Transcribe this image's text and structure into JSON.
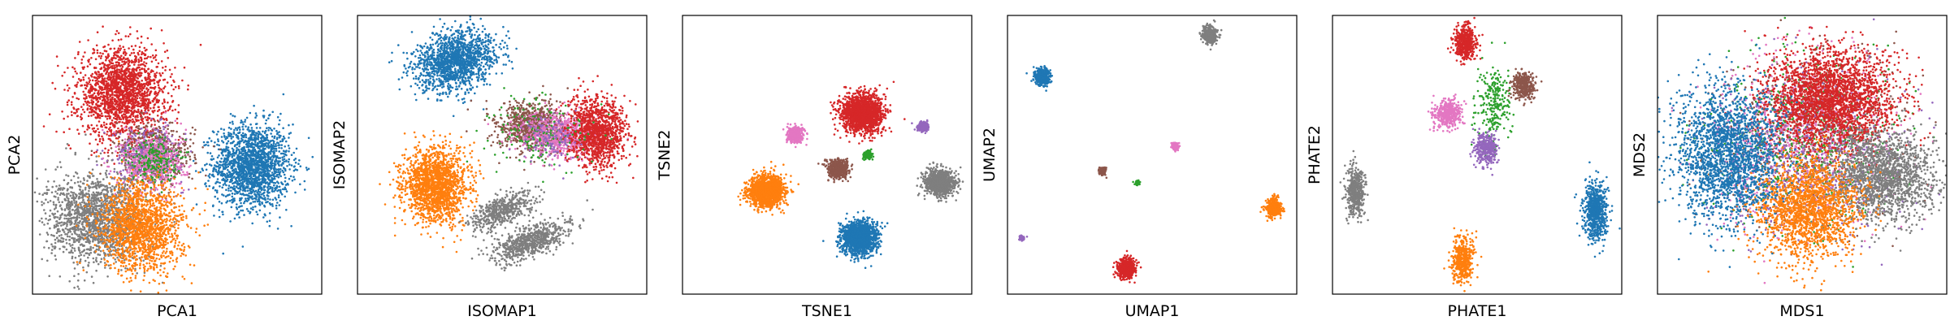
{
  "palette": {
    "blue": "#1f77b4",
    "orange": "#ff7f0e",
    "green": "#2ca02c",
    "red": "#d62728",
    "purple": "#9467bd",
    "brown": "#8c564b",
    "pink": "#e377c2",
    "gray": "#7f7f7f"
  },
  "chart_data": [
    {
      "type": "scatter",
      "xlabel": "PCA1",
      "ylabel": "PCA2",
      "ticks": "none",
      "xlim": [
        0,
        1
      ],
      "ylim": [
        0,
        1
      ],
      "clusters": [
        {
          "color": "blue",
          "x": 0.76,
          "y": 0.46,
          "sx": 0.065,
          "sy": 0.075,
          "n": 1800
        },
        {
          "color": "red",
          "x": 0.31,
          "y": 0.72,
          "sx": 0.075,
          "sy": 0.08,
          "n": 1900
        },
        {
          "color": "brown",
          "x": 0.42,
          "y": 0.5,
          "sx": 0.07,
          "sy": 0.055,
          "n": 500
        },
        {
          "color": "purple",
          "x": 0.4,
          "y": 0.5,
          "sx": 0.06,
          "sy": 0.05,
          "n": 350
        },
        {
          "color": "pink",
          "x": 0.42,
          "y": 0.47,
          "sx": 0.055,
          "sy": 0.055,
          "n": 500
        },
        {
          "color": "green",
          "x": 0.42,
          "y": 0.48,
          "sx": 0.04,
          "sy": 0.04,
          "n": 200
        },
        {
          "color": "gray",
          "x": 0.22,
          "y": 0.27,
          "sx": 0.085,
          "sy": 0.08,
          "n": 1600
        },
        {
          "color": "orange",
          "x": 0.38,
          "y": 0.24,
          "sx": 0.07,
          "sy": 0.08,
          "n": 1600
        }
      ]
    },
    {
      "type": "scatter",
      "xlabel": "ISOMAP1",
      "ylabel": "ISOMAP2",
      "ticks": "none",
      "xlim": [
        0,
        1
      ],
      "ylim": [
        0,
        1
      ],
      "clusters": [
        {
          "color": "blue",
          "x": 0.34,
          "y": 0.84,
          "sx": 0.07,
          "sy": 0.05,
          "n": 1500,
          "rot": 0.35
        },
        {
          "color": "orange",
          "x": 0.27,
          "y": 0.39,
          "sx": 0.055,
          "sy": 0.065,
          "n": 1700
        },
        {
          "color": "brown",
          "x": 0.6,
          "y": 0.6,
          "sx": 0.06,
          "sy": 0.045,
          "n": 800
        },
        {
          "color": "pink",
          "x": 0.7,
          "y": 0.57,
          "sx": 0.07,
          "sy": 0.04,
          "n": 700
        },
        {
          "color": "red",
          "x": 0.83,
          "y": 0.58,
          "sx": 0.05,
          "sy": 0.06,
          "n": 1200
        },
        {
          "color": "green",
          "x": 0.62,
          "y": 0.58,
          "sx": 0.09,
          "sy": 0.07,
          "n": 150
        },
        {
          "color": "purple",
          "x": 0.66,
          "y": 0.56,
          "sx": 0.05,
          "sy": 0.04,
          "n": 120
        },
        {
          "color": "gray",
          "x": 0.5,
          "y": 0.3,
          "sx": 0.06,
          "sy": 0.025,
          "n": 500,
          "rot": 0.45
        },
        {
          "color": "gray",
          "x": 0.6,
          "y": 0.19,
          "sx": 0.07,
          "sy": 0.025,
          "n": 700,
          "rot": 0.4
        }
      ]
    },
    {
      "type": "scatter",
      "xlabel": "TSNE1",
      "ylabel": "TSNE2",
      "ticks": "none",
      "xlim": [
        0,
        1
      ],
      "ylim": [
        0,
        1
      ],
      "clusters": [
        {
          "color": "red",
          "x": 0.62,
          "y": 0.65,
          "sx": 0.035,
          "sy": 0.035,
          "n": 1700
        },
        {
          "color": "blue",
          "x": 0.61,
          "y": 0.2,
          "sx": 0.03,
          "sy": 0.03,
          "n": 1500
        },
        {
          "color": "orange",
          "x": 0.29,
          "y": 0.37,
          "sx": 0.03,
          "sy": 0.028,
          "n": 1500
        },
        {
          "color": "gray",
          "x": 0.89,
          "y": 0.4,
          "sx": 0.025,
          "sy": 0.022,
          "n": 1000
        },
        {
          "color": "brown",
          "x": 0.54,
          "y": 0.45,
          "sx": 0.018,
          "sy": 0.016,
          "n": 500
        },
        {
          "color": "pink",
          "x": 0.39,
          "y": 0.57,
          "sx": 0.014,
          "sy": 0.014,
          "n": 400
        },
        {
          "color": "purple",
          "x": 0.83,
          "y": 0.6,
          "sx": 0.01,
          "sy": 0.008,
          "n": 250
        },
        {
          "color": "green",
          "x": 0.64,
          "y": 0.5,
          "sx": 0.007,
          "sy": 0.007,
          "n": 150
        }
      ]
    },
    {
      "type": "scatter",
      "xlabel": "UMAP1",
      "ylabel": "UMAP2",
      "ticks": "none",
      "xlim": [
        0,
        1
      ],
      "ylim": [
        0,
        1
      ],
      "clusters": [
        {
          "color": "gray",
          "x": 0.7,
          "y": 0.93,
          "sx": 0.012,
          "sy": 0.015,
          "n": 400
        },
        {
          "color": "blue",
          "x": 0.12,
          "y": 0.78,
          "sx": 0.013,
          "sy": 0.017,
          "n": 400
        },
        {
          "color": "orange",
          "x": 0.92,
          "y": 0.31,
          "sx": 0.012,
          "sy": 0.016,
          "n": 400
        },
        {
          "color": "red",
          "x": 0.41,
          "y": 0.09,
          "sx": 0.015,
          "sy": 0.018,
          "n": 500
        },
        {
          "color": "pink",
          "x": 0.58,
          "y": 0.53,
          "sx": 0.006,
          "sy": 0.006,
          "n": 120
        },
        {
          "color": "brown",
          "x": 0.33,
          "y": 0.44,
          "sx": 0.006,
          "sy": 0.007,
          "n": 120
        },
        {
          "color": "green",
          "x": 0.45,
          "y": 0.4,
          "sx": 0.004,
          "sy": 0.004,
          "n": 60
        },
        {
          "color": "purple",
          "x": 0.05,
          "y": 0.2,
          "sx": 0.004,
          "sy": 0.004,
          "n": 60
        }
      ]
    },
    {
      "type": "scatter",
      "xlabel": "PHATE1",
      "ylabel": "PHATE2",
      "ticks": "none",
      "xlim": [
        0,
        1
      ],
      "ylim": [
        0,
        1
      ],
      "clusters": [
        {
          "color": "red",
          "x": 0.46,
          "y": 0.9,
          "sx": 0.018,
          "sy": 0.03,
          "n": 500
        },
        {
          "color": "brown",
          "x": 0.66,
          "y": 0.75,
          "sx": 0.02,
          "sy": 0.025,
          "n": 350
        },
        {
          "color": "green",
          "x": 0.56,
          "y": 0.68,
          "sx": 0.03,
          "sy": 0.07,
          "n": 250
        },
        {
          "color": "pink",
          "x": 0.4,
          "y": 0.65,
          "sx": 0.025,
          "sy": 0.025,
          "n": 400
        },
        {
          "color": "purple",
          "x": 0.53,
          "y": 0.52,
          "sx": 0.02,
          "sy": 0.03,
          "n": 350
        },
        {
          "color": "gray",
          "x": 0.08,
          "y": 0.37,
          "sx": 0.015,
          "sy": 0.045,
          "n": 450
        },
        {
          "color": "blue",
          "x": 0.91,
          "y": 0.3,
          "sx": 0.02,
          "sy": 0.05,
          "n": 700
        },
        {
          "color": "orange",
          "x": 0.45,
          "y": 0.12,
          "sx": 0.02,
          "sy": 0.04,
          "n": 450
        }
      ]
    },
    {
      "type": "scatter",
      "xlabel": "MDS1",
      "ylabel": "MDS2",
      "ticks": "none",
      "xlim": [
        0,
        1
      ],
      "ylim": [
        0,
        1
      ],
      "clusters": [
        {
          "color": "brown",
          "x": 0.52,
          "y": 0.55,
          "sx": 0.16,
          "sy": 0.15,
          "n": 700
        },
        {
          "color": "green",
          "x": 0.52,
          "y": 0.55,
          "sx": 0.15,
          "sy": 0.15,
          "n": 600
        },
        {
          "color": "pink",
          "x": 0.5,
          "y": 0.55,
          "sx": 0.16,
          "sy": 0.15,
          "n": 700
        },
        {
          "color": "purple",
          "x": 0.52,
          "y": 0.52,
          "sx": 0.16,
          "sy": 0.15,
          "n": 600
        },
        {
          "color": "red",
          "x": 0.6,
          "y": 0.7,
          "sx": 0.11,
          "sy": 0.085,
          "n": 2600
        },
        {
          "color": "gray",
          "x": 0.78,
          "y": 0.42,
          "sx": 0.09,
          "sy": 0.08,
          "n": 1700
        },
        {
          "color": "orange",
          "x": 0.52,
          "y": 0.3,
          "sx": 0.09,
          "sy": 0.09,
          "n": 1800
        },
        {
          "color": "blue",
          "x": 0.24,
          "y": 0.5,
          "sx": 0.085,
          "sy": 0.12,
          "n": 2100
        }
      ]
    }
  ]
}
